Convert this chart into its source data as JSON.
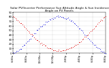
{
  "title": "Solar PV/Inverter Performance Sun Altitude Angle & Sun Incidence Angle on PV Panels",
  "title_fontsize": 3.2,
  "ylim": [
    0,
    90
  ],
  "xlim": [
    0,
    1
  ],
  "yticks": [
    0,
    10,
    20,
    30,
    40,
    50,
    60,
    70,
    80,
    90
  ],
  "ytick_labels": [
    "0",
    "10",
    "20",
    "30",
    "40",
    "50",
    "60",
    "70",
    "80",
    "90"
  ],
  "xtick_labels": [
    "6:00a",
    "8:00a",
    "10:00a",
    "12:00p",
    "2:00p",
    "4:00p",
    "6:00p",
    "8:00p"
  ],
  "blue_color": "#0000dd",
  "red_color": "#dd0000",
  "bg_color": "#ffffff",
  "marker_size": 1.5,
  "grid_color": "#888888",
  "tick_fontsize": 2.8,
  "n_points": 80
}
